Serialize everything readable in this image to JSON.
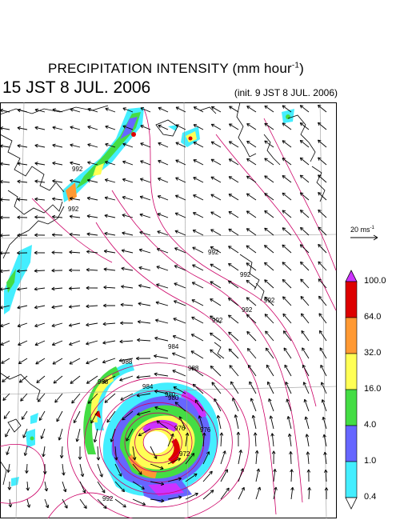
{
  "title": {
    "main": "PRECIPITATION INTENSITY (mm hour",
    "unit_exp": "-1",
    "unit_close": ")"
  },
  "valid_time": "15 JST 8 JUL. 2006",
  "init_time": "(init. 9 JST 8 JUL. 2006)",
  "reference_vector": {
    "label": "20 ms",
    "exp": "-1"
  },
  "legend": {
    "ticks": [
      "100.0",
      "64.0",
      "32.0",
      "16.0",
      "4.0",
      "1.0",
      "0.4"
    ],
    "colors": [
      "#dd0000",
      "#ff9933",
      "#ffff55",
      "#44dd44",
      "#6666ff",
      "#44eeff"
    ],
    "top_color": "#cc33ff",
    "bottom_color": "#ffffff"
  },
  "isobar_labels": [
    "992",
    "992",
    "992",
    "992",
    "992",
    "992",
    "992",
    "988",
    "988",
    "984",
    "980",
    "976",
    "972",
    "976",
    "984",
    "988",
    "980",
    "992"
  ],
  "colors": {
    "isobar": "#cc0066",
    "coast": "#000000",
    "grid": "#999999",
    "wind": "#000000"
  }
}
